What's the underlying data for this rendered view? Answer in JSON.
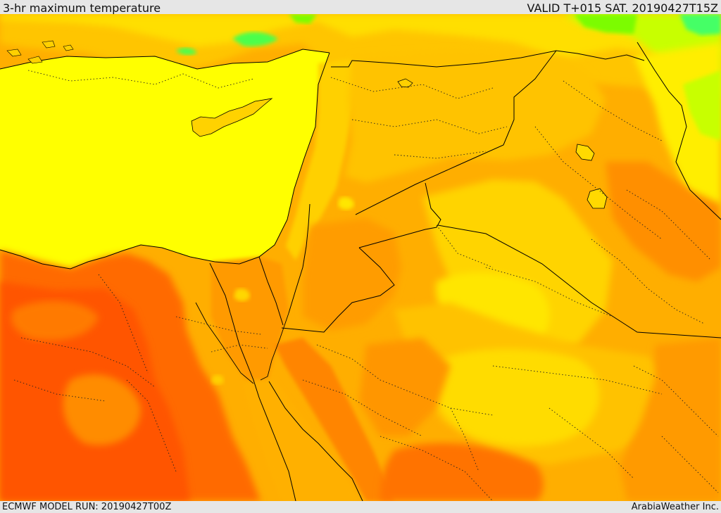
{
  "header": {
    "title": "3-hr maximum temperature",
    "valid_time": "VALID T+015 SAT. 20190427T15Z"
  },
  "footer": {
    "model_run": "ECMWF MODEL RUN: 20190427T00Z",
    "credit": "ArabiaWeather Inc."
  },
  "map": {
    "region": "Eastern Mediterranean, Levant, Sinai, Iraq and northern Arabia",
    "field": "3-hr maximum temperature",
    "colors": {
      "sea_pale_yellow": "#ffff00",
      "warm_yellow": "#ffdf00",
      "gold": "#ffc600",
      "light_orange": "#ffb100",
      "orange": "#ff8c00",
      "dark_orange": "#ff6a00",
      "red_orange": "#ff4f00",
      "green": "#7cfc00",
      "bright_green": "#4cff4c",
      "border_line": "#000000"
    }
  }
}
